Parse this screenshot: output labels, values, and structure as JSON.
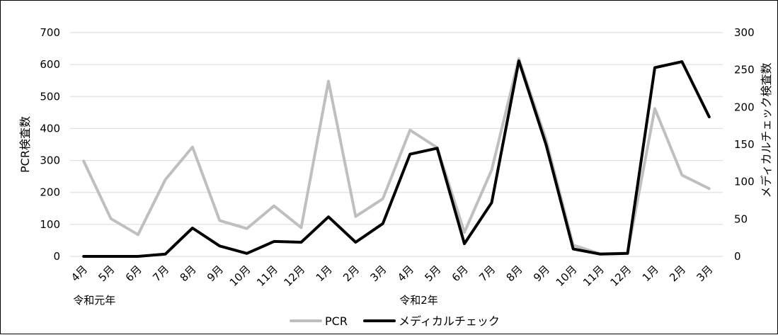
{
  "chart_data": {
    "type": "line",
    "categories": [
      "4月",
      "5月",
      "6月",
      "7月",
      "8月",
      "9月",
      "10月",
      "11月",
      "12月",
      "1月",
      "2月",
      "3月",
      "4月",
      "5月",
      "6月",
      "7月",
      "8月",
      "9月",
      "10月",
      "11月",
      "12月",
      "1月",
      "2月",
      "3月"
    ],
    "year_labels": [
      {
        "text": "令和元年",
        "at_index": 0
      },
      {
        "text": "令和2年",
        "at_index": 12
      }
    ],
    "series": [
      {
        "name": "PCR",
        "axis": "left",
        "color": "#bfbfbf",
        "values": [
          298,
          118,
          68,
          240,
          342,
          112,
          87,
          158,
          90,
          548,
          125,
          180,
          395,
          340,
          75,
          270,
          618,
          365,
          35,
          8,
          10,
          462,
          254,
          212
        ]
      },
      {
        "name": "メディカルチェック",
        "axis": "right",
        "color": "#000000",
        "values": [
          0,
          0,
          0,
          3,
          38,
          14,
          4,
          20,
          19,
          53,
          19,
          44,
          137,
          145,
          17,
          72,
          262,
          150,
          10,
          3,
          4,
          253,
          261,
          187
        ]
      }
    ],
    "y_left": {
      "label": "PCR検査数",
      "min": 0,
      "max": 700,
      "ticks": [
        0,
        100,
        200,
        300,
        400,
        500,
        600,
        700
      ]
    },
    "y_right": {
      "label": "メディカルチェック検査数",
      "min": 0,
      "max": 300,
      "ticks": [
        0,
        50,
        100,
        150,
        200,
        250,
        300
      ]
    },
    "grid": true,
    "legend": "bottom"
  }
}
